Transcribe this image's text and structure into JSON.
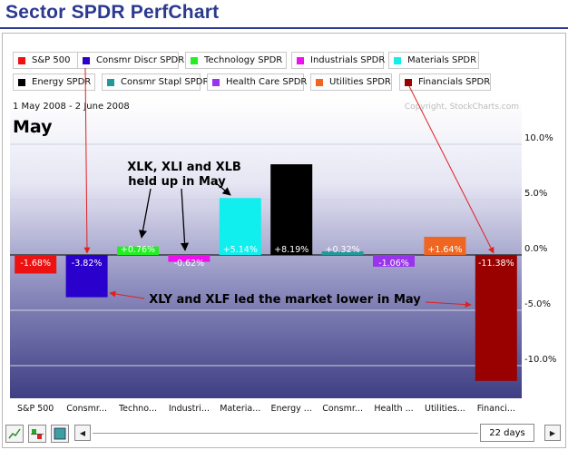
{
  "page": {
    "title": "Sector SPDR PerfChart"
  },
  "legend": [
    {
      "label": "S&P 500",
      "color": "#ee1111"
    },
    {
      "label": "Consmr Discr SPDR",
      "color": "#2a00cc"
    },
    {
      "label": "Technology SPDR",
      "color": "#22ee22"
    },
    {
      "label": "Industrials SPDR",
      "color": "#ee11ee"
    },
    {
      "label": "Materials SPDR",
      "color": "#11eeee"
    },
    {
      "label": "Energy SPDR",
      "color": "#000000"
    },
    {
      "label": "Consmr Stapl SPDR",
      "color": "#229999"
    },
    {
      "label": "Health Care SPDR",
      "color": "#9933ee"
    },
    {
      "label": "Utilities SPDR",
      "color": "#ee6622"
    },
    {
      "label": "Financials SPDR",
      "color": "#990000"
    }
  ],
  "chart_data": {
    "type": "bar",
    "title": "May",
    "date_range": "1 May 2008 - 2 June 2008",
    "copyright": "Copyright, StockCharts.com",
    "categories": [
      "S&P 500",
      "Consmr...",
      "Techno...",
      "Industri...",
      "Materia...",
      "Energy ...",
      "Consmr...",
      "Health ...",
      "Utilities...",
      "Financi..."
    ],
    "values": [
      -1.68,
      -3.82,
      0.76,
      -0.62,
      5.14,
      8.19,
      0.32,
      -1.06,
      1.64,
      -11.38
    ],
    "value_labels": [
      "-1.68%",
      "-3.82%",
      "+0.76%",
      "-0.62%",
      "+5.14%",
      "+8.19%",
      "+0.32%",
      "-1.06%",
      "+1.64%",
      "-11.38%"
    ],
    "colors": [
      "#ee1111",
      "#2a00cc",
      "#22ee22",
      "#ee11ee",
      "#11eeee",
      "#000000",
      "#229999",
      "#9933ee",
      "#ee6622",
      "#990000"
    ],
    "yticks": [
      10,
      5,
      0,
      -5,
      -10
    ],
    "ytick_labels": [
      "10.0%",
      "5.0%",
      "0.0%",
      "-5.0%",
      "-10.0%"
    ],
    "ylim": [
      -13.5,
      12.0
    ],
    "xlabel": "",
    "ylabel": "",
    "grid": true,
    "annotations": [
      {
        "lines": [
          "XLK, XLI and XLB",
          "held up in May"
        ]
      },
      {
        "lines": [
          "XLY and XLF led the market lower in May"
        ]
      }
    ]
  },
  "controls": {
    "days": "22 days",
    "icons": [
      "line-chart-icon",
      "bar-chart-icon",
      "color-box-icon"
    ],
    "left_arrow": "◀",
    "right_arrow": "▶"
  }
}
